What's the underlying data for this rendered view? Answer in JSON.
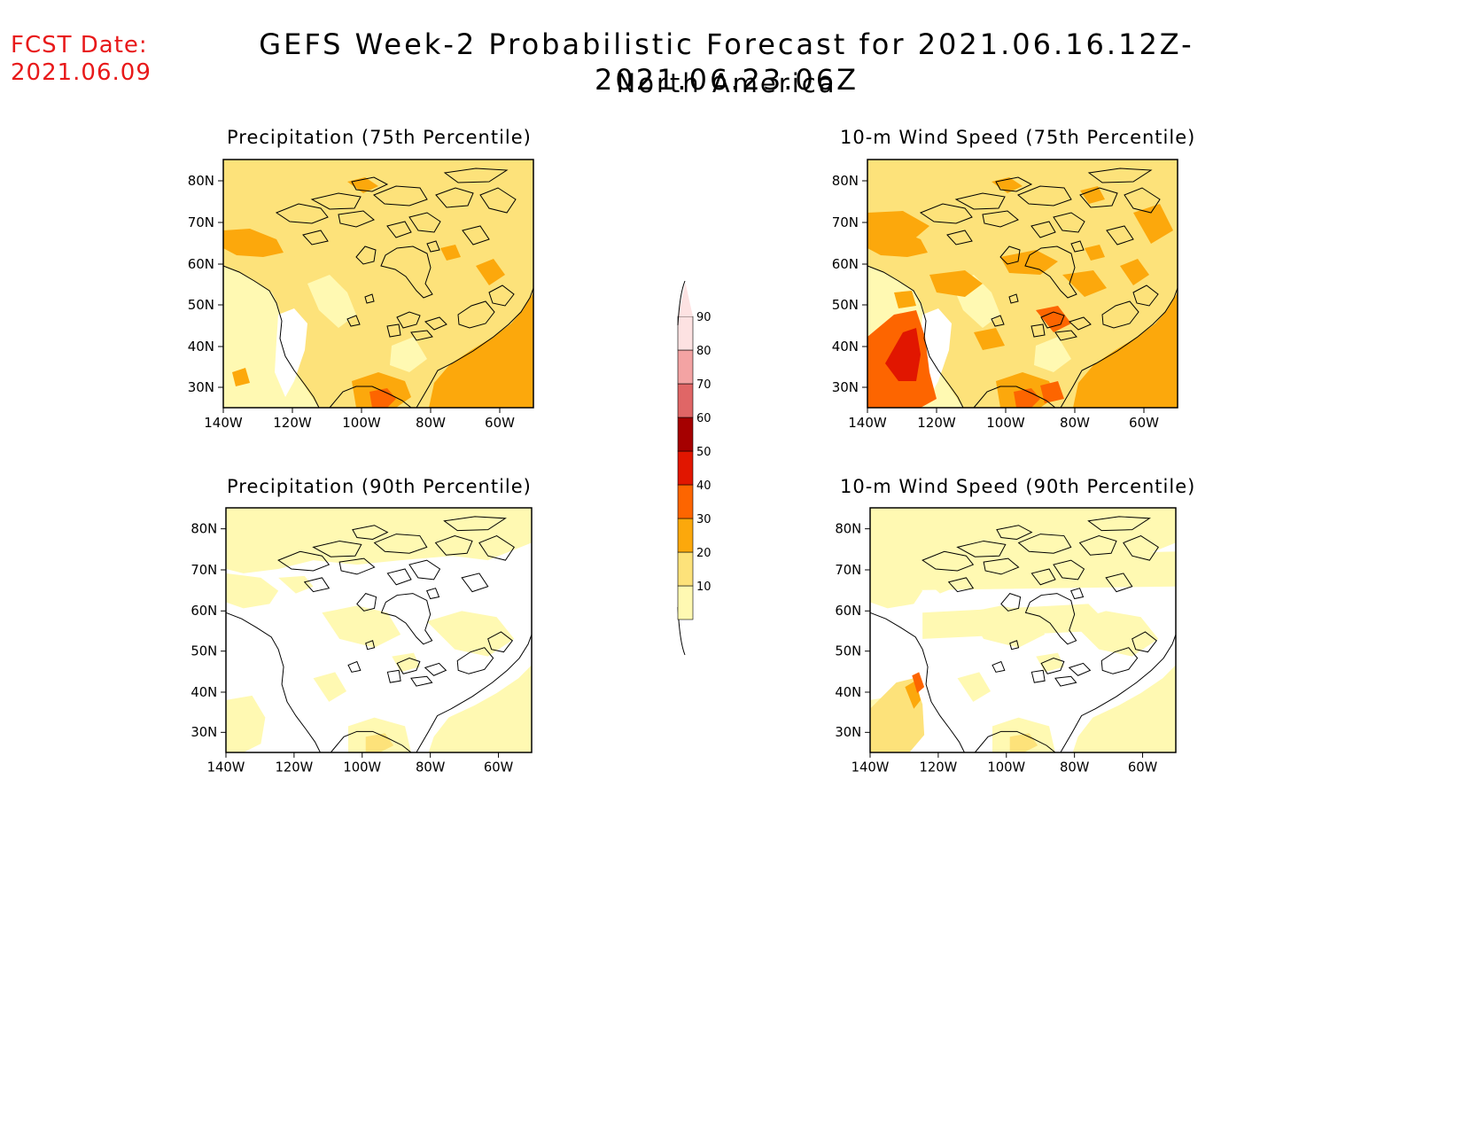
{
  "header": {
    "fcst_label": "FCST Date:",
    "fcst_date": "2021.06.09",
    "title": "GEFS Week-2 Probabilistic Forecast for 2021.06.16.12Z-2021.06.23.06Z",
    "subtitle": "North America"
  },
  "panels": [
    {
      "id": "precip75",
      "title": "Precipitation (75th Percentile)",
      "level": 1
    },
    {
      "id": "wind75",
      "title": "10-m Wind Speed (75th Percentile)",
      "level": 1
    },
    {
      "id": "precip90",
      "title": "Precipitation (90th Percentile)",
      "level": 0
    },
    {
      "id": "wind90",
      "title": "10-m Wind Speed (90th Percentile)",
      "level": 0
    }
  ],
  "axes": {
    "lon_ticks": [
      "140W",
      "120W",
      "100W",
      "80W",
      "60W"
    ],
    "lat_ticks": [
      "80N",
      "70N",
      "60N",
      "50N",
      "40N",
      "30N"
    ]
  },
  "legend": {
    "levels": [
      {
        "label": "10",
        "color": "#fff9b2"
      },
      {
        "label": "20",
        "color": "#fde27a"
      },
      {
        "label": "30",
        "color": "#fca80c"
      },
      {
        "label": "40",
        "color": "#fd6500"
      },
      {
        "label": "50",
        "color": "#e11600"
      },
      {
        "label": "60",
        "color": "#a50000"
      },
      {
        "label": "70",
        "color": "#e06666"
      },
      {
        "label": "80",
        "color": "#f3a3a3"
      },
      {
        "label": "90",
        "color": "#fde2e2"
      }
    ]
  },
  "colors": {
    "fcst_text": "#e8191a",
    "coastline": "#000000"
  }
}
